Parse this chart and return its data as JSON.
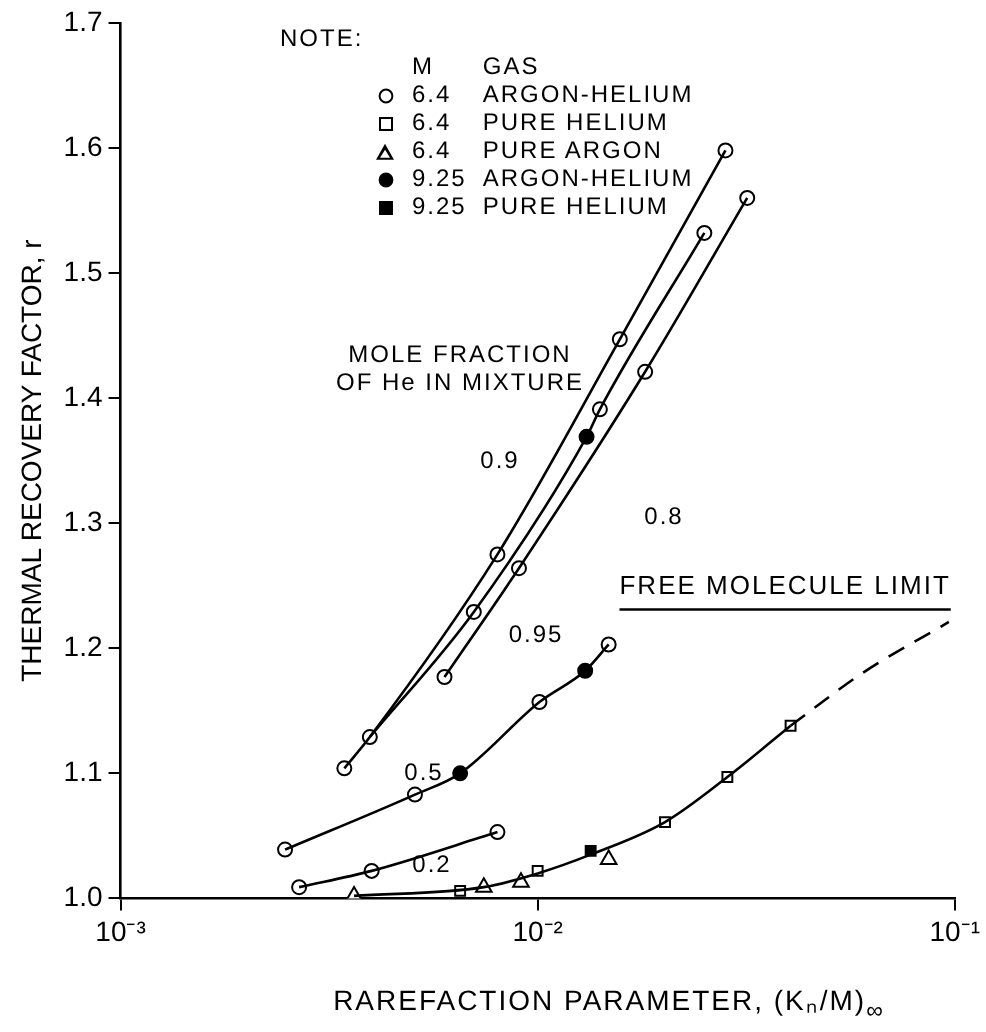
{
  "chart_data": {
    "type": "scatter",
    "xlabel": "RAREFACTION PARAMETER, (Kₙ/M)$_{∞}$",
    "ylabel": "THERMAL RECOVERY FACTOR, r",
    "legend_title": "NOTE:",
    "legend": "top left",
    "log": "x",
    "grid": false,
    "xlim": [
      0.001,
      0.1
    ],
    "xticks": [
      {
        "value": 0.001,
        "label": "10⁻³"
      },
      {
        "value": 0.01,
        "label": "10⁻²"
      },
      {
        "value": 0.1,
        "label": "10⁻¹"
      }
    ],
    "ylim": [
      1.0,
      1.7
    ],
    "yticks": [
      {
        "value": 1.0,
        "label": "1.0"
      },
      1.1,
      1.2,
      1.3,
      1.4,
      1.5,
      1.6,
      1.7
    ],
    "annotations": [
      "M",
      "GAS",
      "MOLE FRACTION\nOF He IN MIXTURE",
      "0.95",
      "0.9",
      "0.8",
      "0.5",
      "0.2"
    ],
    "ref_lines": [
      {
        "axis": "y",
        "value": 1.231,
        "label": "FREE MOLECULE LIMIT"
      }
    ],
    "series": [
      {
        "type": "line",
        "marker": "none",
        "line_style": "solid",
        "color": "#000000",
        "x": [
          0.00344,
          0.00396,
          0.00801,
          0.01574,
          0.0282
        ],
        "values": [
          1.104,
          1.129,
          1.275,
          1.447,
          1.598
        ]
      },
      {
        "type": "line",
        "marker": "none",
        "line_style": "solid",
        "color": "#000000",
        "x": [
          0.00396,
          0.00703,
          0.0131,
          0.0141,
          0.0251
        ],
        "values": [
          1.129,
          1.229,
          1.369,
          1.391,
          1.532
        ]
      },
      {
        "type": "line",
        "marker": "none",
        "line_style": "solid",
        "color": "#000000",
        "x": [
          0.00598,
          0.00902,
          0.0181,
          0.0318
        ],
        "values": [
          1.177,
          1.264,
          1.421,
          1.56
        ]
      },
      {
        "type": "line",
        "marker": "none",
        "line_style": "solid",
        "color": "#000000",
        "x": [
          0.00248,
          0.00508,
          0.00652,
          0.0101,
          0.013,
          0.0148
        ],
        "values": [
          1.039,
          1.083,
          1.1,
          1.157,
          1.182,
          1.203
        ]
      },
      {
        "type": "line",
        "marker": "none",
        "line_style": "solid",
        "color": "#000000",
        "x": [
          0.00268,
          0.004,
          0.00801
        ],
        "values": [
          1.009,
          1.022,
          1.053
        ]
      },
      {
        "type": "line",
        "marker": "none",
        "line_style": "solid",
        "color": "#000000",
        "x": [
          0.00363,
          0.00743,
          0.01,
          0.0134,
          0.0202,
          0.0285,
          0.0404
        ],
        "values": [
          1.002,
          1.009,
          1.02,
          1.035,
          1.061,
          1.097,
          1.138
        ]
      },
      {
        "type": "line",
        "marker": "none",
        "line_style": "dashed",
        "color": "#000000",
        "x": [
          0.0404,
          0.06,
          0.0968
        ],
        "values": [
          1.138,
          1.18,
          1.221
        ]
      },
      {
        "type": "scatter",
        "name": "6.4 ARGON-HELIUM",
        "marker": "circle",
        "color": "#ffffff",
        "x": [
          0.00344,
          0.00396,
          0.00801,
          0.01574,
          0.0282,
          0.00703,
          0.0141,
          0.0251,
          0.00598,
          0.00902,
          0.0181,
          0.0318,
          0.00248,
          0.00508,
          0.0101,
          0.0148,
          0.00268,
          0.004,
          0.00801
        ],
        "values": [
          1.104,
          1.129,
          1.275,
          1.447,
          1.598,
          1.229,
          1.391,
          1.532,
          1.177,
          1.264,
          1.421,
          1.56,
          1.039,
          1.083,
          1.157,
          1.203,
          1.009,
          1.022,
          1.053
        ]
      },
      {
        "type": "scatter",
        "name": "6.4 PURE HELIUM",
        "marker": "square",
        "color": "#ffffff",
        "x": [
          0.00652,
          0.01,
          0.0202,
          0.0285,
          0.0404
        ],
        "values": [
          1.006,
          1.022,
          1.061,
          1.097,
          1.138
        ]
      },
      {
        "type": "scatter",
        "name": "6.4 PURE ARGON",
        "marker": "triangle",
        "color": "#ffffff",
        "x": [
          0.00363,
          0.00743,
          0.00912,
          0.0148
        ],
        "values": [
          1.002,
          1.009,
          1.013,
          1.031
        ]
      },
      {
        "type": "scatter",
        "name": "9.25 ARGON-HELIUM",
        "marker": "circle",
        "color": "#000000",
        "x": [
          0.0131,
          0.00652,
          0.013
        ],
        "values": [
          1.369,
          1.1,
          1.182
        ]
      },
      {
        "type": "scatter",
        "name": "9.25 PURE HELIUM",
        "marker": "square",
        "color": "#000000",
        "x": [
          0.0134
        ],
        "values": [
          1.038
        ]
      }
    ]
  }
}
